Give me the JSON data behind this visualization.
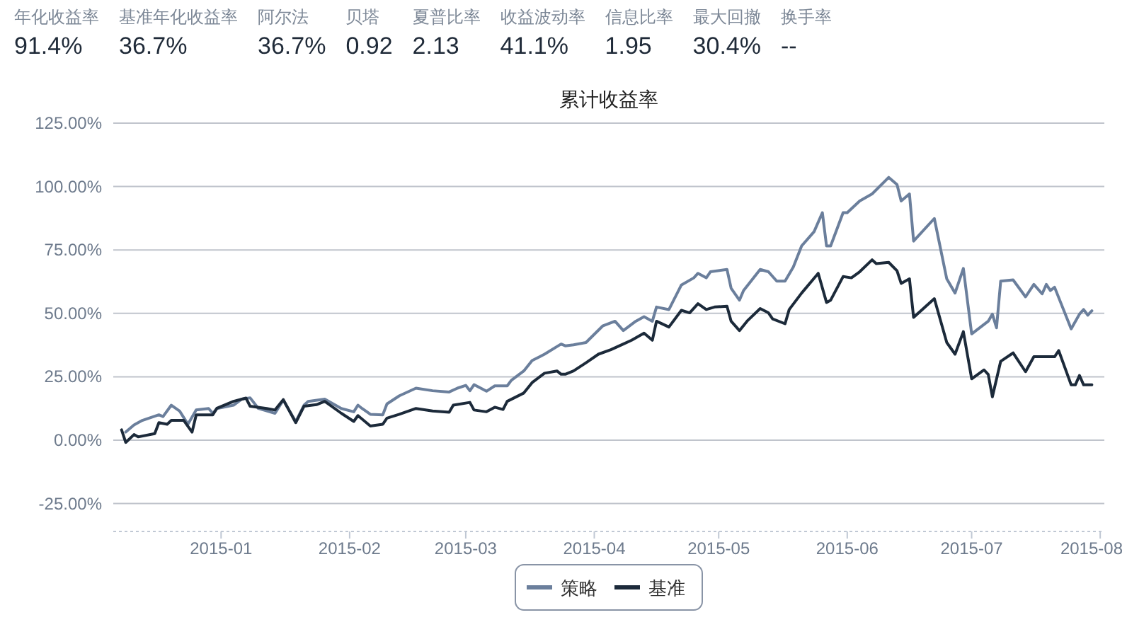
{
  "chart_data": {
    "type": "line",
    "title": "累计收益率",
    "annotations": [
      "年化收益率",
      "91.4%",
      "基准年化收益率",
      "36.7%",
      "阿尔法",
      "36.7%",
      "贝塔",
      "0.92",
      "夏普比率",
      "2.13",
      "收益波动率",
      "41.1%",
      "信息比率",
      "1.95",
      "最大回撤",
      "30.4%",
      "换手率",
      "--"
    ],
    "xlim": [
      "2014-12-06",
      "2015-08-02"
    ],
    "xticks": [
      {
        "value": "2015-01-01",
        "label": "2015-01"
      },
      {
        "value": "2015-02-01",
        "label": "2015-02"
      },
      {
        "value": "2015-03-01",
        "label": "2015-03"
      },
      {
        "value": "2015-04-01",
        "label": "2015-04"
      },
      {
        "value": "2015-05-01",
        "label": "2015-05"
      },
      {
        "value": "2015-06-01",
        "label": "2015-06"
      },
      {
        "value": "2015-07-01",
        "label": "2015-07"
      },
      {
        "value": "2015-08-01",
        "label": "2015-08"
      }
    ],
    "ylim": [
      -36,
      125
    ],
    "yticks": [
      {
        "value": -25,
        "label": "-25.00%"
      },
      {
        "value": 0,
        "label": "0.00%"
      },
      {
        "value": 25,
        "label": "25.00%"
      },
      {
        "value": 50,
        "label": "50.00%"
      },
      {
        "value": 75,
        "label": "75.00%"
      },
      {
        "value": 100,
        "label": "100.00%"
      },
      {
        "value": 125,
        "label": "125.00%"
      }
    ],
    "grid": "y",
    "legend": "bottom",
    "series": [
      {
        "name": "策略",
        "color": "#6b7f9c",
        "x": [
          "2014-12-09",
          "2014-12-11",
          "2014-12-13",
          "2014-12-17",
          "2014-12-18",
          "2014-12-20",
          "2014-12-22",
          "2014-12-24",
          "2014-12-26",
          "2014-12-29",
          "2014-12-30",
          "2014-12-31",
          "2015-01-04",
          "2015-01-06",
          "2015-01-08",
          "2015-01-10",
          "2015-01-14",
          "2015-01-16",
          "2015-01-19",
          "2015-01-21",
          "2015-01-22",
          "2015-01-26",
          "2015-01-30",
          "2015-02-02",
          "2015-02-03",
          "2015-02-04",
          "2015-02-06",
          "2015-02-09",
          "2015-02-10",
          "2015-02-13",
          "2015-02-17",
          "2015-02-21",
          "2015-02-25",
          "2015-02-27",
          "2015-03-01",
          "2015-03-02",
          "2015-03-03",
          "2015-03-06",
          "2015-03-08",
          "2015-03-11",
          "2015-03-12",
          "2015-03-15",
          "2015-03-17",
          "2015-03-20",
          "2015-03-24",
          "2015-03-25",
          "2015-03-27",
          "2015-03-30",
          "2015-04-03",
          "2015-04-06",
          "2015-04-08",
          "2015-04-11",
          "2015-04-13",
          "2015-04-15",
          "2015-04-16",
          "2015-04-19",
          "2015-04-22",
          "2015-04-25",
          "2015-04-26",
          "2015-04-28",
          "2015-04-29",
          "2015-05-03",
          "2015-05-04",
          "2015-05-06",
          "2015-05-07",
          "2015-05-11",
          "2015-05-13",
          "2015-05-15",
          "2015-05-17",
          "2015-05-19",
          "2015-05-21",
          "2015-05-24",
          "2015-05-26",
          "2015-05-27",
          "2015-05-28",
          "2015-05-31",
          "2015-06-01",
          "2015-06-04",
          "2015-06-07",
          "2015-06-11",
          "2015-06-13",
          "2015-06-14",
          "2015-06-16",
          "2015-06-17",
          "2015-06-22",
          "2015-06-25",
          "2015-06-27",
          "2015-06-29",
          "2015-07-01",
          "2015-07-05",
          "2015-07-06",
          "2015-07-07",
          "2015-07-08",
          "2015-07-11",
          "2015-07-14",
          "2015-07-16",
          "2015-07-18",
          "2015-07-19",
          "2015-07-20",
          "2015-07-21",
          "2015-07-25",
          "2015-07-27",
          "2015-07-28",
          "2015-07-29",
          "2015-07-30"
        ],
        "values": [
          3.2,
          6.0,
          7.8,
          10.0,
          9.3,
          13.8,
          11.5,
          6.3,
          11.9,
          12.5,
          10.6,
          12.5,
          13.8,
          16.2,
          16.7,
          12.5,
          10.6,
          15.8,
          7.3,
          13.8,
          15.3,
          16.2,
          12.5,
          11.2,
          13.8,
          12.5,
          10.2,
          10.0,
          14.3,
          17.5,
          20.5,
          19.5,
          19.0,
          20.5,
          21.6,
          19.5,
          21.9,
          19.3,
          21.4,
          21.4,
          23.6,
          27.3,
          31.4,
          33.9,
          37.9,
          37.2,
          37.6,
          38.5,
          45.0,
          46.9,
          43.2,
          46.9,
          48.7,
          46.9,
          52.5,
          51.5,
          61.2,
          64.0,
          65.8,
          64.0,
          66.4,
          67.3,
          59.9,
          55.2,
          59.0,
          67.3,
          66.4,
          62.7,
          62.7,
          68.3,
          76.6,
          82.2,
          89.7,
          76.6,
          76.6,
          89.7,
          89.7,
          94.3,
          97.1,
          103.6,
          100.8,
          94.3,
          97.1,
          78.5,
          87.4,
          63.6,
          58.0,
          67.7,
          41.9,
          46.9,
          49.7,
          44.3,
          62.7,
          63.2,
          56.5,
          61.4,
          57.7,
          61.4,
          59.0,
          60.3,
          43.9,
          49.7,
          51.5,
          49.3,
          51.0
        ]
      },
      {
        "name": "基准",
        "color": "#1c2a3a",
        "x": [
          "2014-12-08",
          "2014-12-09",
          "2014-12-11",
          "2014-12-12",
          "2014-12-16",
          "2014-12-17",
          "2014-12-19",
          "2014-12-20",
          "2014-12-23",
          "2014-12-25",
          "2014-12-26",
          "2014-12-30",
          "2014-12-31",
          "2015-01-04",
          "2015-01-07",
          "2015-01-08",
          "2015-01-12",
          "2015-01-14",
          "2015-01-16",
          "2015-01-19",
          "2015-01-21",
          "2015-01-24",
          "2015-01-26",
          "2015-01-30",
          "2015-02-02",
          "2015-02-03",
          "2015-02-06",
          "2015-02-09",
          "2015-02-10",
          "2015-02-13",
          "2015-02-17",
          "2015-02-21",
          "2015-02-25",
          "2015-02-26",
          "2015-03-02",
          "2015-03-03",
          "2015-03-06",
          "2015-03-08",
          "2015-03-10",
          "2015-03-11",
          "2015-03-15",
          "2015-03-17",
          "2015-03-20",
          "2015-03-23",
          "2015-03-24",
          "2015-03-25",
          "2015-03-27",
          "2015-03-30",
          "2015-04-02",
          "2015-04-05",
          "2015-04-08",
          "2015-04-10",
          "2015-04-13",
          "2015-04-15",
          "2015-04-16",
          "2015-04-19",
          "2015-04-22",
          "2015-04-24",
          "2015-04-26",
          "2015-04-28",
          "2015-04-30",
          "2015-05-03",
          "2015-05-04",
          "2015-05-06",
          "2015-05-08",
          "2015-05-11",
          "2015-05-13",
          "2015-05-14",
          "2015-05-17",
          "2015-05-18",
          "2015-05-21",
          "2015-05-25",
          "2015-05-27",
          "2015-05-28",
          "2015-05-31",
          "2015-06-02",
          "2015-06-04",
          "2015-06-07",
          "2015-06-08",
          "2015-06-11",
          "2015-06-13",
          "2015-06-14",
          "2015-06-16",
          "2015-06-17",
          "2015-06-22",
          "2015-06-25",
          "2015-06-27",
          "2015-06-29",
          "2015-07-01",
          "2015-07-04",
          "2015-07-05",
          "2015-07-06",
          "2015-07-08",
          "2015-07-11",
          "2015-07-14",
          "2015-07-16",
          "2015-07-21",
          "2015-07-22",
          "2015-07-25",
          "2015-07-26",
          "2015-07-27",
          "2015-07-28",
          "2015-07-30"
        ],
        "values": [
          4.1,
          -0.9,
          2.2,
          1.3,
          2.6,
          6.9,
          6.3,
          7.8,
          7.8,
          3.2,
          10.0,
          10.0,
          12.6,
          15.3,
          16.6,
          13.4,
          12.5,
          11.9,
          16.0,
          6.9,
          13.4,
          14.0,
          15.3,
          10.6,
          7.4,
          9.7,
          5.6,
          6.3,
          8.7,
          10.2,
          12.5,
          11.5,
          11.0,
          13.8,
          14.9,
          11.9,
          11.2,
          13.0,
          12.1,
          15.3,
          18.6,
          22.7,
          26.4,
          27.3,
          26.0,
          26.0,
          27.3,
          30.5,
          33.9,
          35.7,
          37.9,
          39.4,
          42.2,
          39.4,
          46.9,
          44.6,
          51.2,
          50.2,
          53.8,
          51.5,
          52.5,
          52.8,
          46.9,
          43.2,
          47.2,
          51.9,
          50.2,
          47.8,
          45.9,
          51.5,
          58.0,
          65.8,
          54.3,
          55.2,
          64.5,
          64.0,
          66.4,
          71.1,
          69.6,
          70.1,
          66.8,
          61.8,
          63.6,
          48.4,
          55.8,
          38.5,
          33.9,
          42.8,
          24.2,
          27.7,
          25.9,
          17.1,
          31.1,
          34.4,
          27.0,
          32.9,
          32.9,
          35.3,
          21.8,
          21.8,
          25.5,
          21.8,
          21.8
        ]
      }
    ]
  }
}
